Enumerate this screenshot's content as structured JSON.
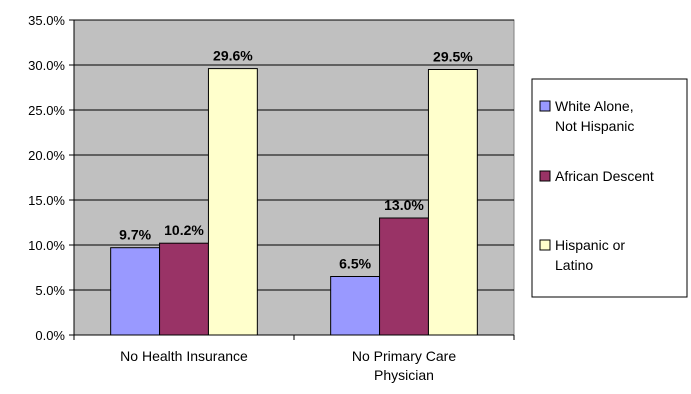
{
  "chart_data": {
    "type": "bar",
    "title": "",
    "xlabel": "",
    "ylabel": "",
    "categories": [
      "No Health Insurance",
      "No Primary Care Physician"
    ],
    "category_lines": [
      [
        "No Health Insurance"
      ],
      [
        "No Primary Care",
        "Physician"
      ]
    ],
    "series": [
      {
        "name": "White Alone, Not Hispanic",
        "name_lines": [
          "White Alone,",
          "Not Hispanic"
        ],
        "values": [
          9.7,
          6.5
        ],
        "color": "#9999FF"
      },
      {
        "name": "African Descent",
        "name_lines": [
          "African Descent"
        ],
        "values": [
          10.2,
          13.0
        ],
        "color": "#993366"
      },
      {
        "name": "Hispanic or Latino",
        "name_lines": [
          "Hispanic or",
          "Latino"
        ],
        "values": [
          29.6,
          29.5
        ],
        "color": "#FFFFCC"
      }
    ],
    "data_labels": [
      [
        "9.7%",
        "6.5%"
      ],
      [
        "10.2%",
        "13.0%"
      ],
      [
        "29.6%",
        "29.5%"
      ]
    ],
    "y_ticks": [
      "0.0%",
      "5.0%",
      "10.0%",
      "15.0%",
      "20.0%",
      "25.0%",
      "30.0%",
      "35.0%"
    ],
    "ylim": [
      0,
      35
    ],
    "grid": true,
    "legend_position": "right",
    "plot_background": "#C0C0C0",
    "bar_outline": "#000000"
  }
}
